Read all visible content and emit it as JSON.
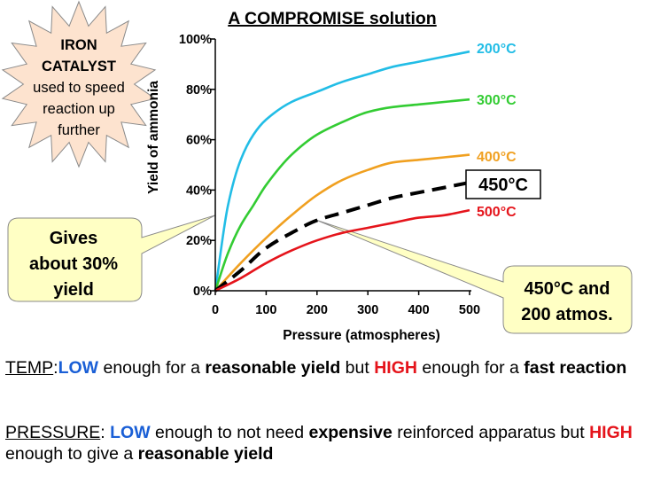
{
  "chart_data": {
    "type": "line",
    "title": "A COMPROMISE solution",
    "xlabel": "Pressure (atmospheres)",
    "ylabel": "Yield of ammonia",
    "xlim": [
      0,
      500
    ],
    "ylim": [
      0,
      100
    ],
    "x_ticks": [
      0,
      100,
      200,
      300,
      400,
      500
    ],
    "x_tick_labels": [
      "0",
      "100",
      "200",
      "300",
      "400",
      "500"
    ],
    "y_ticks": [
      0,
      20,
      40,
      60,
      80,
      100
    ],
    "y_tick_labels": [
      "0%",
      "20%",
      "40%",
      "60%",
      "80%",
      "100%"
    ],
    "grid": false,
    "series": [
      {
        "name": "200°C",
        "color": "#22bde6",
        "dashed": false,
        "x": [
          0,
          25,
          50,
          75,
          100,
          150,
          200,
          250,
          300,
          350,
          400,
          450,
          500
        ],
        "y": [
          0,
          34,
          52,
          62,
          68,
          75,
          79,
          83,
          86,
          89,
          91,
          93,
          95
        ]
      },
      {
        "name": "300°C",
        "color": "#33cc33",
        "dashed": false,
        "x": [
          0,
          25,
          50,
          75,
          100,
          150,
          200,
          250,
          300,
          350,
          400,
          450,
          500
        ],
        "y": [
          0,
          15,
          26,
          34,
          42,
          54,
          62,
          67,
          71,
          73,
          74,
          75,
          76
        ]
      },
      {
        "name": "400°C",
        "color": "#f0a020",
        "dashed": false,
        "x": [
          0,
          50,
          100,
          150,
          200,
          250,
          300,
          350,
          400,
          450,
          500
        ],
        "y": [
          0,
          11,
          21,
          30,
          38,
          44,
          48,
          51,
          52,
          53,
          54
        ]
      },
      {
        "name": "450°C",
        "color": "#000000",
        "dashed": true,
        "x": [
          0,
          50,
          100,
          150,
          200,
          250,
          300,
          350,
          400,
          450,
          500
        ],
        "y": [
          0,
          8,
          17,
          23,
          28,
          31,
          34,
          37,
          39,
          41,
          43
        ]
      },
      {
        "name": "500°C",
        "color": "#e5141b",
        "dashed": false,
        "x": [
          0,
          50,
          100,
          150,
          200,
          250,
          300,
          350,
          400,
          450,
          500
        ],
        "y": [
          0,
          5,
          11,
          16,
          20,
          23,
          25,
          27,
          29,
          30,
          32
        ]
      }
    ],
    "annotations": [
      {
        "lines": [
          "IRON",
          "CATALYST",
          "used to speed",
          "reaction up",
          "further"
        ],
        "shape": "starburst",
        "color": "#fde3cf"
      },
      {
        "lines": [
          "Gives",
          "about 30%",
          "yield"
        ],
        "shape": "callout",
        "color": "#ffffc4",
        "points_to": [
          0,
          30
        ]
      },
      {
        "lines": [
          "450°C and",
          "200 atmos."
        ],
        "shape": "callout",
        "color": "#ffffc4",
        "points_to": [
          200,
          28
        ]
      }
    ]
  },
  "temp_text": {
    "label": "TEMP",
    "sep": ":",
    "low": "LOW",
    "p1": " enough for a ",
    "b1": "reasonable yield",
    "p2": " but ",
    "high": "HIGH",
    "p3": " enough for a ",
    "b2": "fast reaction"
  },
  "pressure_text": {
    "label": "PRESSURE",
    "sep": ": ",
    "low": "LOW",
    "p1": " enough to not need ",
    "b1": "expensive",
    "p2": " reinforced apparatus but ",
    "high": "HIGH",
    "p3": " enough to give a ",
    "b2": "reasonable yield"
  }
}
